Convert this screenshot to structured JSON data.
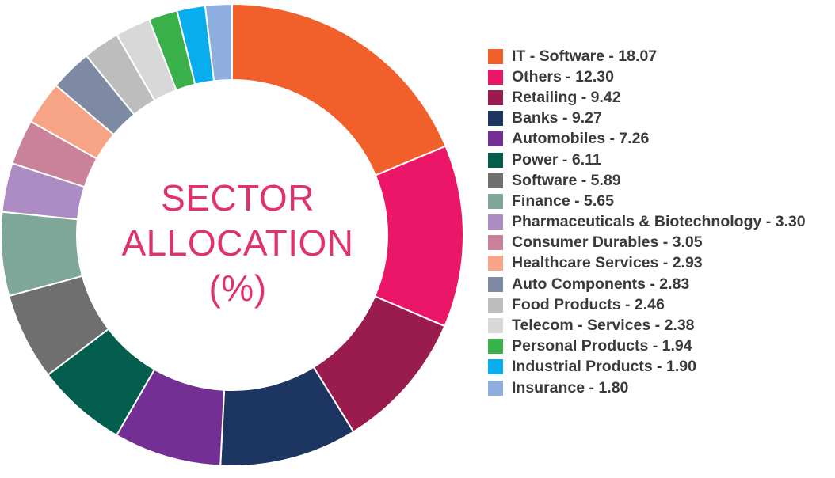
{
  "chart_data": {
    "type": "pie",
    "title_lines": [
      "SECTOR",
      "ALLOCATION",
      "(%)"
    ],
    "series": [
      {
        "label": "IT - Software - 18.07",
        "value": 18.07,
        "color": "#f15f2a"
      },
      {
        "label": "Others - 12.30",
        "value": 12.3,
        "color": "#ec1668"
      },
      {
        "label": "Retailing - 9.42",
        "value": 9.42,
        "color": "#9a1c4e"
      },
      {
        "label": "Banks - 9.27",
        "value": 9.27,
        "color": "#1c3661"
      },
      {
        "label": "Automobiles - 7.26",
        "value": 7.26,
        "color": "#732f93"
      },
      {
        "label": "Power - 6.11",
        "value": 6.11,
        "color": "#035e4d"
      },
      {
        "label": "Software - 5.89",
        "value": 5.89,
        "color": "#6f6f6f"
      },
      {
        "label": "Finance - 5.65",
        "value": 5.65,
        "color": "#7ea79a"
      },
      {
        "label": "Pharmaceuticals & Biotechnology - 3.30",
        "value": 3.3,
        "color": "#ad8bc3"
      },
      {
        "label": "Consumer Durables - 3.05",
        "value": 3.05,
        "color": "#c9829a"
      },
      {
        "label": "Healthcare Services - 2.93",
        "value": 2.93,
        "color": "#f7a486"
      },
      {
        "label": "Auto Components - 2.83",
        "value": 2.83,
        "color": "#7e8aa3"
      },
      {
        "label": "Food Products - 2.46",
        "value": 2.46,
        "color": "#bdbdbd"
      },
      {
        "label": "Telecom - Services - 2.38",
        "value": 2.38,
        "color": "#d8d8d8"
      },
      {
        "label": "Personal Products - 1.94",
        "value": 1.94,
        "color": "#3ab04a"
      },
      {
        "label": "Industrial Products - 1.90",
        "value": 1.9,
        "color": "#07aded"
      },
      {
        "label": "Insurance - 1.80",
        "value": 1.8,
        "color": "#8fadde"
      }
    ],
    "legend_position": "right",
    "start_angle": "top",
    "direction": "clockwise"
  }
}
